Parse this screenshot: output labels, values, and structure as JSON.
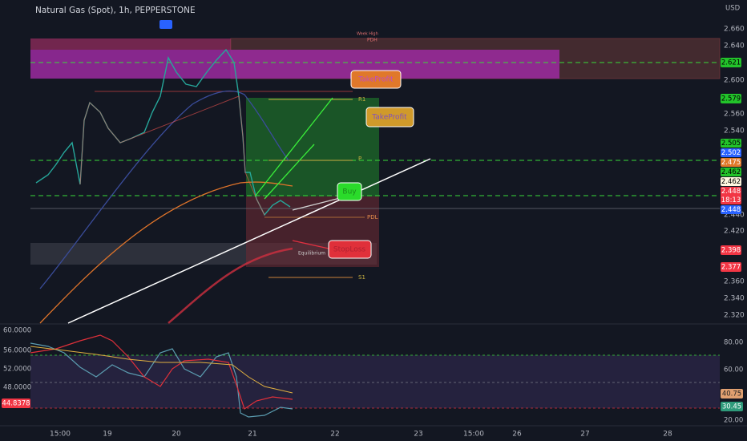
{
  "header": {
    "symbol": "Natural Gas (Spot), 1h, PEPPERSTONE",
    "currency": "USD"
  },
  "price_axis": {
    "ticks": [
      "2.660",
      "2.640",
      "2.600",
      "2.560",
      "2.540",
      "2.440",
      "2.420",
      "2.360",
      "2.340",
      "2.320"
    ]
  },
  "price_badges": [
    "2.621",
    "2.579",
    "2.505",
    "2.502",
    "2.475",
    "2.462",
    "2.462",
    "2.448",
    "18:13",
    "2.448",
    "2.398",
    "2.377"
  ],
  "chart_labels": {
    "week_high": "Week High",
    "pdh": "PDH",
    "r1": "R1",
    "p": "P",
    "pdl": "PDL",
    "s1": "S1",
    "equilibrium": "Equilibrium"
  },
  "callouts": {
    "take_profit_1": "TakeProfit",
    "take_profit_2": "TakeProfit",
    "buy": "Buy",
    "stop_loss": "StopLoss"
  },
  "oscillator": {
    "left_ticks": [
      "60.0000",
      "56.0000",
      "52.0000",
      "48.0000"
    ],
    "left_badge": "44.8378",
    "right_ticks": [
      "80.00",
      "60.00",
      "20.00"
    ],
    "right_badges": [
      "40.75",
      "30.45"
    ]
  },
  "time_axis": {
    "ticks": [
      "15:00",
      "19",
      "20",
      "21",
      "22",
      "23",
      "15:00",
      "26",
      "27",
      "28"
    ]
  }
}
